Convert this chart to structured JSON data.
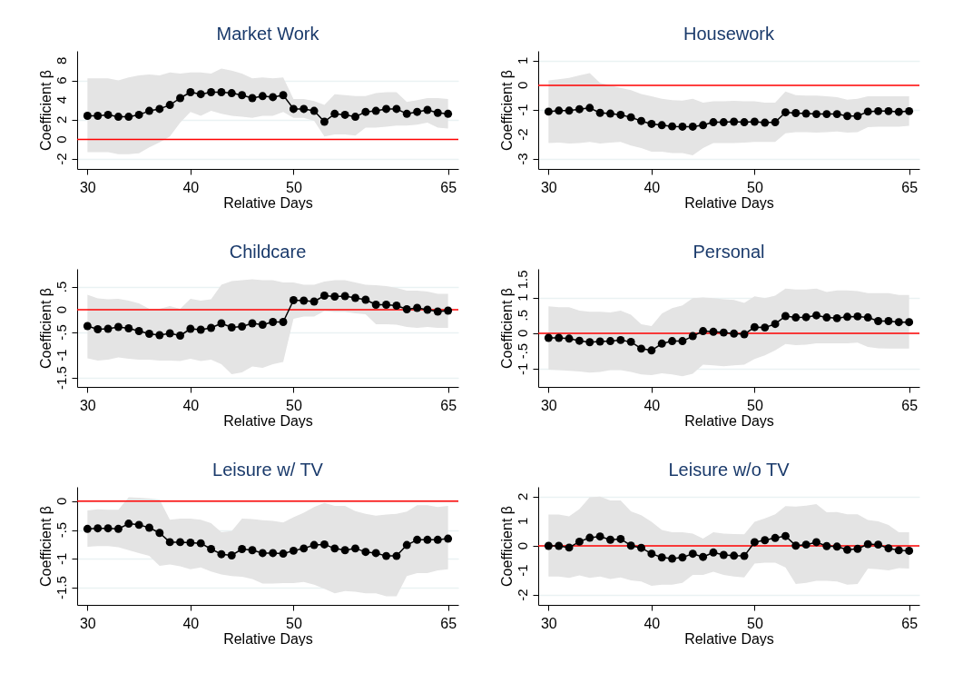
{
  "chart_data": [
    {
      "type": "line",
      "title": "Market Work",
      "xlabel": "Relative Days",
      "ylabel": "Coefficient β",
      "x": [
        30,
        31,
        32,
        33,
        34,
        35,
        36,
        37,
        38,
        39,
        40,
        41,
        42,
        43,
        44,
        45,
        46,
        47,
        48,
        49,
        50,
        51,
        52,
        53,
        54,
        55,
        56,
        57,
        58,
        59,
        60,
        61,
        62,
        63,
        64,
        65
      ],
      "xlim": [
        29,
        66
      ],
      "xticks": [
        30,
        40,
        50,
        65
      ],
      "ylim": [
        -3,
        9
      ],
      "yticks": [
        -2,
        0,
        2,
        4,
        6,
        8
      ],
      "grid": "y",
      "marker": "circle",
      "ref_lines": [
        {
          "axis": "y",
          "value": 0,
          "color": "#ff0000"
        }
      ],
      "series": [
        {
          "color": "#000000",
          "values": [
            2.4,
            2.4,
            2.5,
            2.3,
            2.3,
            2.5,
            2.9,
            3.1,
            3.5,
            4.2,
            4.8,
            4.6,
            4.8,
            4.8,
            4.7,
            4.5,
            4.2,
            4.4,
            4.3,
            4.5,
            3.1,
            3.1,
            2.9,
            1.8,
            2.6,
            2.5,
            2.3,
            2.8,
            2.9,
            3.1,
            3.1,
            2.6,
            2.8,
            3.0,
            2.7,
            2.6
          ],
          "lower": [
            -1.3,
            -1.3,
            -1.3,
            -1.5,
            -1.5,
            -1.4,
            -0.8,
            -0.3,
            0.3,
            1.7,
            2.8,
            2.4,
            2.9,
            2.6,
            2.4,
            2.3,
            2.2,
            2.4,
            2.4,
            2.8,
            2.2,
            2.2,
            1.9,
            0.3,
            0.5,
            0.5,
            0.4,
            1.2,
            1.2,
            1.3,
            1.4,
            1.4,
            1.5,
            1.7,
            1.2,
            1.1
          ],
          "upper": [
            6.2,
            6.2,
            6.2,
            6.0,
            6.3,
            6.5,
            6.6,
            6.5,
            6.8,
            6.7,
            6.8,
            6.8,
            6.7,
            7.2,
            7.0,
            6.7,
            6.2,
            6.3,
            6.2,
            6.3,
            4.1,
            4.1,
            3.9,
            3.5,
            4.6,
            4.5,
            4.4,
            4.4,
            4.7,
            4.8,
            4.8,
            3.8,
            4.0,
            4.2,
            4.2,
            4.1
          ]
        }
      ]
    },
    {
      "type": "line",
      "title": "Housework",
      "xlabel": "Relative Days",
      "ylabel": "Coefficient β",
      "x": [
        30,
        31,
        32,
        33,
        34,
        35,
        36,
        37,
        38,
        39,
        40,
        41,
        42,
        43,
        44,
        45,
        46,
        47,
        48,
        49,
        50,
        51,
        52,
        53,
        54,
        55,
        56,
        57,
        58,
        59,
        60,
        61,
        62,
        63,
        64,
        65
      ],
      "xlim": [
        29,
        66
      ],
      "xticks": [
        30,
        40,
        50,
        65
      ],
      "ylim": [
        -3.4,
        1.4
      ],
      "yticks": [
        -3,
        -2,
        -1,
        0,
        1
      ],
      "grid": "y",
      "marker": "circle",
      "ref_lines": [
        {
          "axis": "y",
          "value": 0,
          "color": "#ff0000"
        }
      ],
      "series": [
        {
          "color": "#000000",
          "values": [
            -1.07,
            -1.03,
            -1.03,
            -0.97,
            -0.92,
            -1.12,
            -1.15,
            -1.2,
            -1.3,
            -1.45,
            -1.57,
            -1.62,
            -1.67,
            -1.68,
            -1.68,
            -1.62,
            -1.5,
            -1.5,
            -1.48,
            -1.5,
            -1.48,
            -1.52,
            -1.5,
            -1.1,
            -1.13,
            -1.15,
            -1.17,
            -1.17,
            -1.17,
            -1.25,
            -1.25,
            -1.07,
            -1.05,
            -1.05,
            -1.08,
            -1.05
          ],
          "lower": [
            -2.35,
            -2.33,
            -2.37,
            -2.35,
            -2.3,
            -2.37,
            -2.33,
            -2.3,
            -2.45,
            -2.55,
            -2.7,
            -2.7,
            -2.75,
            -2.75,
            -2.85,
            -2.55,
            -2.35,
            -2.35,
            -2.35,
            -2.33,
            -2.3,
            -2.3,
            -2.3,
            -1.95,
            -1.9,
            -1.9,
            -1.92,
            -1.9,
            -1.88,
            -1.92,
            -1.9,
            -1.7,
            -1.68,
            -1.68,
            -1.68,
            -1.65
          ],
          "upper": [
            0.2,
            0.25,
            0.3,
            0.4,
            0.5,
            0.1,
            0.0,
            -0.1,
            -0.2,
            -0.35,
            -0.45,
            -0.55,
            -0.6,
            -0.62,
            -0.55,
            -0.7,
            -0.65,
            -0.65,
            -0.63,
            -0.65,
            -0.65,
            -0.7,
            -0.7,
            -0.25,
            -0.4,
            -0.42,
            -0.42,
            -0.45,
            -0.48,
            -0.58,
            -0.55,
            -0.45,
            -0.45,
            -0.45,
            -0.45,
            -0.45
          ]
        }
      ]
    },
    {
      "type": "line",
      "title": "Childcare",
      "xlabel": "Relative Days",
      "ylabel": "Coefficient β",
      "x": [
        30,
        31,
        32,
        33,
        34,
        35,
        36,
        37,
        38,
        39,
        40,
        41,
        42,
        43,
        44,
        45,
        46,
        47,
        48,
        49,
        50,
        51,
        52,
        53,
        54,
        55,
        56,
        57,
        58,
        59,
        60,
        61,
        62,
        63,
        64,
        65
      ],
      "xlim": [
        29,
        66
      ],
      "xticks": [
        30,
        40,
        50,
        65
      ],
      "ylim": [
        -1.7,
        0.9
      ],
      "yticks": [
        {
          "value": -1.5,
          "label": "-1.5"
        },
        -1,
        {
          "value": -0.5,
          "label": "-.5"
        },
        0,
        {
          "value": 0.5,
          "label": ".5"
        }
      ],
      "grid": "y",
      "marker": "circle",
      "ref_lines": [
        {
          "axis": "y",
          "value": 0,
          "color": "#ff0000"
        }
      ],
      "series": [
        {
          "color": "#000000",
          "values": [
            -0.36,
            -0.43,
            -0.42,
            -0.38,
            -0.41,
            -0.47,
            -0.53,
            -0.56,
            -0.52,
            -0.57,
            -0.42,
            -0.44,
            -0.4,
            -0.3,
            -0.39,
            -0.37,
            -0.3,
            -0.33,
            -0.27,
            -0.27,
            0.21,
            0.2,
            0.18,
            0.31,
            0.29,
            0.3,
            0.26,
            0.22,
            0.11,
            0.11,
            0.09,
            0.01,
            0.04,
            0.0,
            -0.04,
            -0.02
          ],
          "lower": [
            -1.07,
            -1.12,
            -1.1,
            -1.05,
            -1.08,
            -1.1,
            -1.1,
            -1.12,
            -1.12,
            -1.13,
            -1.08,
            -1.13,
            -1.1,
            -1.2,
            -1.42,
            -1.38,
            -1.25,
            -1.28,
            -1.2,
            -1.15,
            -0.2,
            -0.15,
            -0.15,
            -0.03,
            -0.05,
            -0.05,
            -0.08,
            -0.1,
            -0.32,
            -0.32,
            -0.33,
            -0.38,
            -0.4,
            -0.38,
            -0.4,
            -0.4
          ],
          "upper": [
            0.33,
            0.25,
            0.23,
            0.24,
            0.2,
            0.14,
            0.02,
            0.02,
            0.08,
            0.02,
            0.24,
            0.2,
            0.23,
            0.55,
            0.63,
            0.65,
            0.67,
            0.65,
            0.65,
            0.6,
            0.6,
            0.55,
            0.55,
            0.62,
            0.65,
            0.65,
            0.6,
            0.55,
            0.54,
            0.52,
            0.48,
            0.42,
            0.42,
            0.4,
            0.35,
            0.35
          ]
        }
      ]
    },
    {
      "type": "line",
      "title": "Personal",
      "xlabel": "Relative Days",
      "ylabel": "Coefficient β",
      "x": [
        30,
        31,
        32,
        33,
        34,
        35,
        36,
        37,
        38,
        39,
        40,
        41,
        42,
        43,
        44,
        45,
        46,
        47,
        48,
        49,
        50,
        51,
        52,
        53,
        54,
        55,
        56,
        57,
        58,
        59,
        60,
        61,
        62,
        63,
        64,
        65
      ],
      "xlim": [
        29,
        66
      ],
      "xticks": [
        30,
        40,
        50,
        65
      ],
      "ylim": [
        -1.5,
        1.8
      ],
      "yticks": [
        -1,
        {
          "value": -0.5,
          "label": "-.5"
        },
        0,
        {
          "value": 0.5,
          "label": ".5"
        },
        1,
        {
          "value": 1.5,
          "label": "1.5"
        }
      ],
      "grid": "y",
      "marker": "circle",
      "ref_lines": [
        {
          "axis": "y",
          "value": 0,
          "color": "#ff0000"
        }
      ],
      "series": [
        {
          "color": "#000000",
          "values": [
            -0.13,
            -0.13,
            -0.15,
            -0.21,
            -0.25,
            -0.23,
            -0.22,
            -0.19,
            -0.24,
            -0.43,
            -0.48,
            -0.29,
            -0.22,
            -0.22,
            -0.08,
            0.06,
            0.04,
            0.02,
            -0.01,
            -0.03,
            0.17,
            0.16,
            0.26,
            0.48,
            0.44,
            0.45,
            0.5,
            0.44,
            0.42,
            0.46,
            0.47,
            0.44,
            0.34,
            0.34,
            0.31,
            0.31
          ],
          "lower": [
            -1.02,
            -1.03,
            -1.05,
            -1.07,
            -1.1,
            -1.08,
            -1.03,
            -1.03,
            -1.08,
            -1.15,
            -1.17,
            -1.12,
            -1.15,
            -1.2,
            -1.13,
            -0.88,
            -0.9,
            -0.92,
            -0.9,
            -0.88,
            -0.72,
            -0.62,
            -0.48,
            -0.3,
            -0.33,
            -0.32,
            -0.28,
            -0.28,
            -0.28,
            -0.28,
            -0.26,
            -0.38,
            -0.42,
            -0.43,
            -0.43,
            -0.43
          ],
          "upper": [
            0.75,
            0.73,
            0.73,
            0.63,
            0.6,
            0.6,
            0.58,
            0.63,
            0.52,
            0.25,
            0.2,
            0.55,
            0.7,
            0.78,
            0.98,
            1.0,
            0.98,
            0.95,
            0.93,
            0.85,
            1.03,
            0.98,
            1.05,
            1.25,
            1.22,
            1.22,
            1.25,
            1.15,
            1.2,
            1.2,
            1.18,
            1.12,
            1.12,
            1.12,
            1.07,
            1.07
          ]
        }
      ]
    },
    {
      "type": "line",
      "title": "Leisure w/ TV",
      "xlabel": "Relative Days",
      "ylabel": "Coefficient β",
      "x": [
        30,
        31,
        32,
        33,
        34,
        35,
        36,
        37,
        38,
        39,
        40,
        41,
        42,
        43,
        44,
        45,
        46,
        47,
        48,
        49,
        50,
        51,
        52,
        53,
        54,
        55,
        56,
        57,
        58,
        59,
        60,
        61,
        62,
        63,
        64,
        65
      ],
      "xlim": [
        29,
        66
      ],
      "xticks": [
        30,
        40,
        50,
        65
      ],
      "ylim": [
        -1.8,
        0.25
      ],
      "yticks": [
        {
          "value": -1.5,
          "label": "-1.5"
        },
        -1,
        {
          "value": -0.5,
          "label": "-.5"
        },
        0
      ],
      "grid": "y",
      "marker": "circle",
      "ref_lines": [
        {
          "axis": "y",
          "value": 0,
          "color": "#ff0000"
        }
      ],
      "series": [
        {
          "color": "#000000",
          "values": [
            -0.48,
            -0.47,
            -0.47,
            -0.48,
            -0.39,
            -0.41,
            -0.46,
            -0.55,
            -0.71,
            -0.71,
            -0.72,
            -0.73,
            -0.83,
            -0.92,
            -0.94,
            -0.83,
            -0.85,
            -0.9,
            -0.9,
            -0.91,
            -0.86,
            -0.82,
            -0.76,
            -0.75,
            -0.82,
            -0.85,
            -0.82,
            -0.88,
            -0.9,
            -0.95,
            -0.95,
            -0.76,
            -0.67,
            -0.67,
            -0.67,
            -0.65
          ],
          "lower": [
            -0.79,
            -0.78,
            -0.78,
            -0.8,
            -0.85,
            -0.9,
            -0.95,
            -1.12,
            -1.1,
            -1.13,
            -1.18,
            -1.15,
            -1.22,
            -1.27,
            -1.3,
            -1.31,
            -1.35,
            -1.43,
            -1.43,
            -1.42,
            -1.42,
            -1.4,
            -1.45,
            -1.52,
            -1.6,
            -1.56,
            -1.57,
            -1.6,
            -1.6,
            -1.65,
            -1.65,
            -1.3,
            -1.25,
            -1.25,
            -1.2,
            -1.18
          ],
          "upper": [
            -0.16,
            -0.14,
            -0.15,
            -0.15,
            0.07,
            0.06,
            0.05,
            0.03,
            -0.32,
            -0.3,
            -0.3,
            -0.32,
            -0.38,
            -0.54,
            -0.52,
            -0.3,
            -0.31,
            -0.33,
            -0.34,
            -0.37,
            -0.28,
            -0.2,
            -0.1,
            -0.03,
            -0.08,
            -0.08,
            -0.17,
            -0.22,
            -0.25,
            -0.23,
            -0.22,
            -0.18,
            -0.07,
            -0.07,
            -0.1,
            -0.08
          ]
        }
      ]
    },
    {
      "type": "line",
      "title": "Leisure w/o TV",
      "xlabel": "Relative Days",
      "ylabel": "Coefficient β",
      "x": [
        30,
        31,
        32,
        33,
        34,
        35,
        36,
        37,
        38,
        39,
        40,
        41,
        42,
        43,
        44,
        45,
        46,
        47,
        48,
        49,
        50,
        51,
        52,
        53,
        54,
        55,
        56,
        57,
        58,
        59,
        60,
        61,
        62,
        63,
        64,
        65
      ],
      "xlim": [
        29,
        66
      ],
      "xticks": [
        30,
        40,
        50,
        65
      ],
      "ylim": [
        -2.4,
        2.4
      ],
      "yticks": [
        -2,
        -1,
        0,
        1,
        2
      ],
      "grid": "y",
      "marker": "circle",
      "ref_lines": [
        {
          "axis": "y",
          "value": 0,
          "color": "#ff0000"
        }
      ],
      "series": [
        {
          "color": "#000000",
          "values": [
            0.0,
            0.0,
            -0.07,
            0.17,
            0.33,
            0.38,
            0.25,
            0.28,
            0.01,
            -0.08,
            -0.32,
            -0.47,
            -0.52,
            -0.47,
            -0.32,
            -0.45,
            -0.27,
            -0.37,
            -0.4,
            -0.41,
            0.15,
            0.23,
            0.32,
            0.4,
            0.01,
            0.05,
            0.15,
            -0.01,
            -0.03,
            -0.16,
            -0.12,
            0.07,
            0.05,
            -0.1,
            -0.18,
            -0.2
          ],
          "lower": [
            -1.25,
            -1.25,
            -1.3,
            -1.2,
            -1.3,
            -1.25,
            -1.35,
            -1.28,
            -1.4,
            -1.45,
            -1.62,
            -1.58,
            -1.58,
            -1.5,
            -1.18,
            -1.18,
            -1.05,
            -1.18,
            -1.25,
            -1.28,
            -0.72,
            -0.68,
            -0.68,
            -0.88,
            -1.55,
            -1.5,
            -1.42,
            -1.42,
            -1.45,
            -1.58,
            -1.55,
            -0.92,
            -0.95,
            -1.0,
            -0.9,
            -0.92
          ],
          "upper": [
            1.27,
            1.27,
            1.2,
            1.5,
            1.98,
            2.0,
            1.85,
            1.85,
            1.4,
            1.25,
            0.98,
            0.65,
            0.55,
            0.55,
            0.5,
            0.3,
            0.55,
            0.5,
            0.48,
            0.47,
            0.98,
            1.12,
            1.28,
            1.62,
            1.6,
            1.63,
            1.7,
            1.37,
            1.38,
            1.28,
            1.28,
            1.05,
            1.0,
            0.85,
            0.55,
            0.55
          ]
        }
      ]
    }
  ]
}
